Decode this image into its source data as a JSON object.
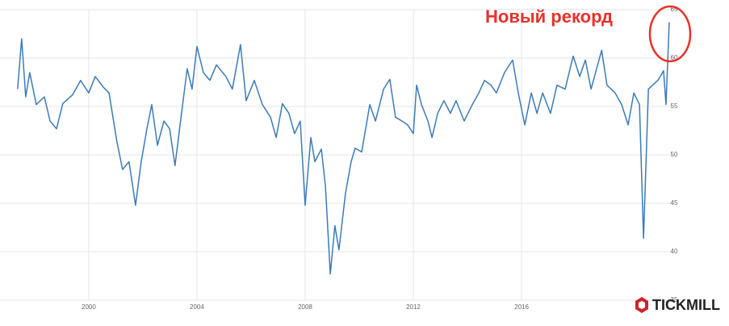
{
  "chart_data": {
    "type": "line",
    "annotation": "Новый рекорд",
    "x": [
      1997.37,
      1997.52,
      1997.67,
      1997.82,
      1998.06,
      1998.36,
      1998.57,
      1998.81,
      1999.04,
      1999.4,
      1999.7,
      2000.0,
      2000.24,
      2000.54,
      2000.75,
      2001.04,
      2001.25,
      2001.49,
      2001.73,
      2001.94,
      2002.15,
      2002.33,
      2002.54,
      2002.78,
      2002.99,
      2003.19,
      2003.43,
      2003.64,
      2003.82,
      2004.0,
      2004.24,
      2004.48,
      2004.72,
      2005.07,
      2005.31,
      2005.61,
      2005.82,
      2006.12,
      2006.42,
      2006.72,
      2006.93,
      2007.16,
      2007.4,
      2007.61,
      2007.82,
      2008.0,
      2008.21,
      2008.36,
      2008.6,
      2008.75,
      2008.93,
      2009.1,
      2009.25,
      2009.49,
      2009.7,
      2009.85,
      2010.09,
      2010.39,
      2010.6,
      2010.9,
      2011.13,
      2011.34,
      2011.58,
      2011.79,
      2012.0,
      2012.12,
      2012.3,
      2012.54,
      2012.69,
      2012.9,
      2013.13,
      2013.37,
      2013.58,
      2013.88,
      2014.18,
      2014.42,
      2014.63,
      2014.87,
      2015.07,
      2015.37,
      2015.67,
      2015.88,
      2016.12,
      2016.36,
      2016.57,
      2016.78,
      2017.07,
      2017.31,
      2017.61,
      2017.91,
      2018.15,
      2018.36,
      2018.57,
      2018.96,
      2019.16,
      2019.46,
      2019.7,
      2019.94,
      2020.15,
      2020.36,
      2020.51,
      2020.69,
      2020.84,
      2021.04,
      2021.25,
      2021.34,
      2021.46
    ],
    "series": [
      {
        "color": "#3b7bb8",
        "values": [
          56.8,
          62,
          56,
          58.5,
          55.2,
          56,
          53.5,
          52.7,
          55.3,
          56.2,
          57.7,
          56.4,
          58.1,
          57,
          56.4,
          51.4,
          48.5,
          49.3,
          44.8,
          49.3,
          52.7,
          55.2,
          51,
          53.5,
          52.7,
          48.9,
          54.3,
          58.9,
          56.8,
          61.2,
          58.5,
          57.7,
          59.3,
          58.1,
          56.8,
          61.4,
          55.6,
          57.7,
          55.2,
          53.9,
          51.8,
          55.3,
          54.3,
          52.2,
          53.5,
          44.8,
          51.8,
          49.3,
          50.6,
          46.8,
          37.7,
          42.7,
          40.2,
          46,
          49.3,
          50.7,
          50.3,
          55.2,
          53.5,
          56.8,
          57.8,
          53.9,
          53.5,
          53.1,
          52.2,
          57.2,
          55.2,
          53.5,
          51.8,
          54.3,
          55.6,
          54.3,
          55.6,
          53.5,
          55.2,
          56.4,
          57.7,
          57.2,
          56.4,
          58.5,
          59.8,
          56.4,
          53.1,
          56.4,
          54.3,
          56.4,
          54.3,
          57.2,
          56.8,
          60.2,
          58.1,
          59.8,
          56.8,
          60.8,
          57.2,
          56.4,
          55.2,
          53.1,
          56.4,
          55.2,
          41.4,
          56.8,
          57.2,
          57.7,
          58.7,
          55.2,
          63.7
        ]
      }
    ],
    "xlim": [
      1996.72,
      2021.58
    ],
    "xticks": [
      2000,
      2004,
      2008,
      2012,
      2016
    ],
    "ylim": [
      35,
      65
    ],
    "yticks": [
      35,
      40,
      45,
      50,
      55,
      60,
      65
    ],
    "grid": true
  },
  "logo": "TICKMILL"
}
